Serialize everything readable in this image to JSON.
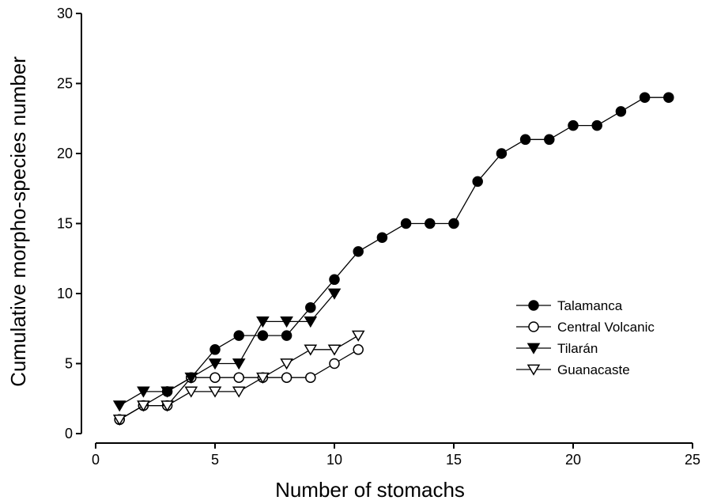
{
  "chart_data": {
    "type": "line",
    "title": "",
    "xlabel": "Number of stomachs",
    "ylabel": "Cumulative morpho-species number",
    "xlim": [
      0,
      25
    ],
    "ylim": [
      0,
      30
    ],
    "xticks": [
      0,
      5,
      10,
      15,
      20,
      25
    ],
    "yticks": [
      0,
      5,
      10,
      15,
      20,
      25,
      30
    ],
    "grid": false,
    "legend_position": "right",
    "series": [
      {
        "name": "Talamanca",
        "marker": "filled-circle",
        "x": [
          1,
          2,
          3,
          4,
          5,
          6,
          7,
          8,
          9,
          10,
          11,
          12,
          13,
          14,
          15,
          16,
          17,
          18,
          19,
          20,
          21,
          22,
          23,
          24
        ],
        "y": [
          1,
          2,
          3,
          4,
          6,
          7,
          7,
          7,
          9,
          11,
          13,
          14,
          15,
          15,
          15,
          18,
          20,
          21,
          21,
          22,
          22,
          23,
          24,
          24
        ]
      },
      {
        "name": "Central Volcanic",
        "marker": "open-circle",
        "x": [
          1,
          2,
          3,
          4,
          5,
          6,
          7,
          8,
          9,
          10,
          11
        ],
        "y": [
          1,
          2,
          2,
          4,
          4,
          4,
          4,
          4,
          4,
          5,
          6
        ]
      },
      {
        "name": "Tilarán",
        "marker": "filled-triangle-down",
        "x": [
          1,
          2,
          3,
          4,
          5,
          6,
          7,
          8,
          9,
          10
        ],
        "y": [
          2,
          3,
          3,
          4,
          5,
          5,
          8,
          8,
          8,
          10
        ]
      },
      {
        "name": "Guanacaste",
        "marker": "open-triangle-down",
        "x": [
          1,
          2,
          3,
          4,
          5,
          6,
          7,
          8,
          9,
          10,
          11
        ],
        "y": [
          1,
          2,
          2,
          3,
          3,
          3,
          4,
          5,
          6,
          6,
          7
        ]
      }
    ]
  }
}
